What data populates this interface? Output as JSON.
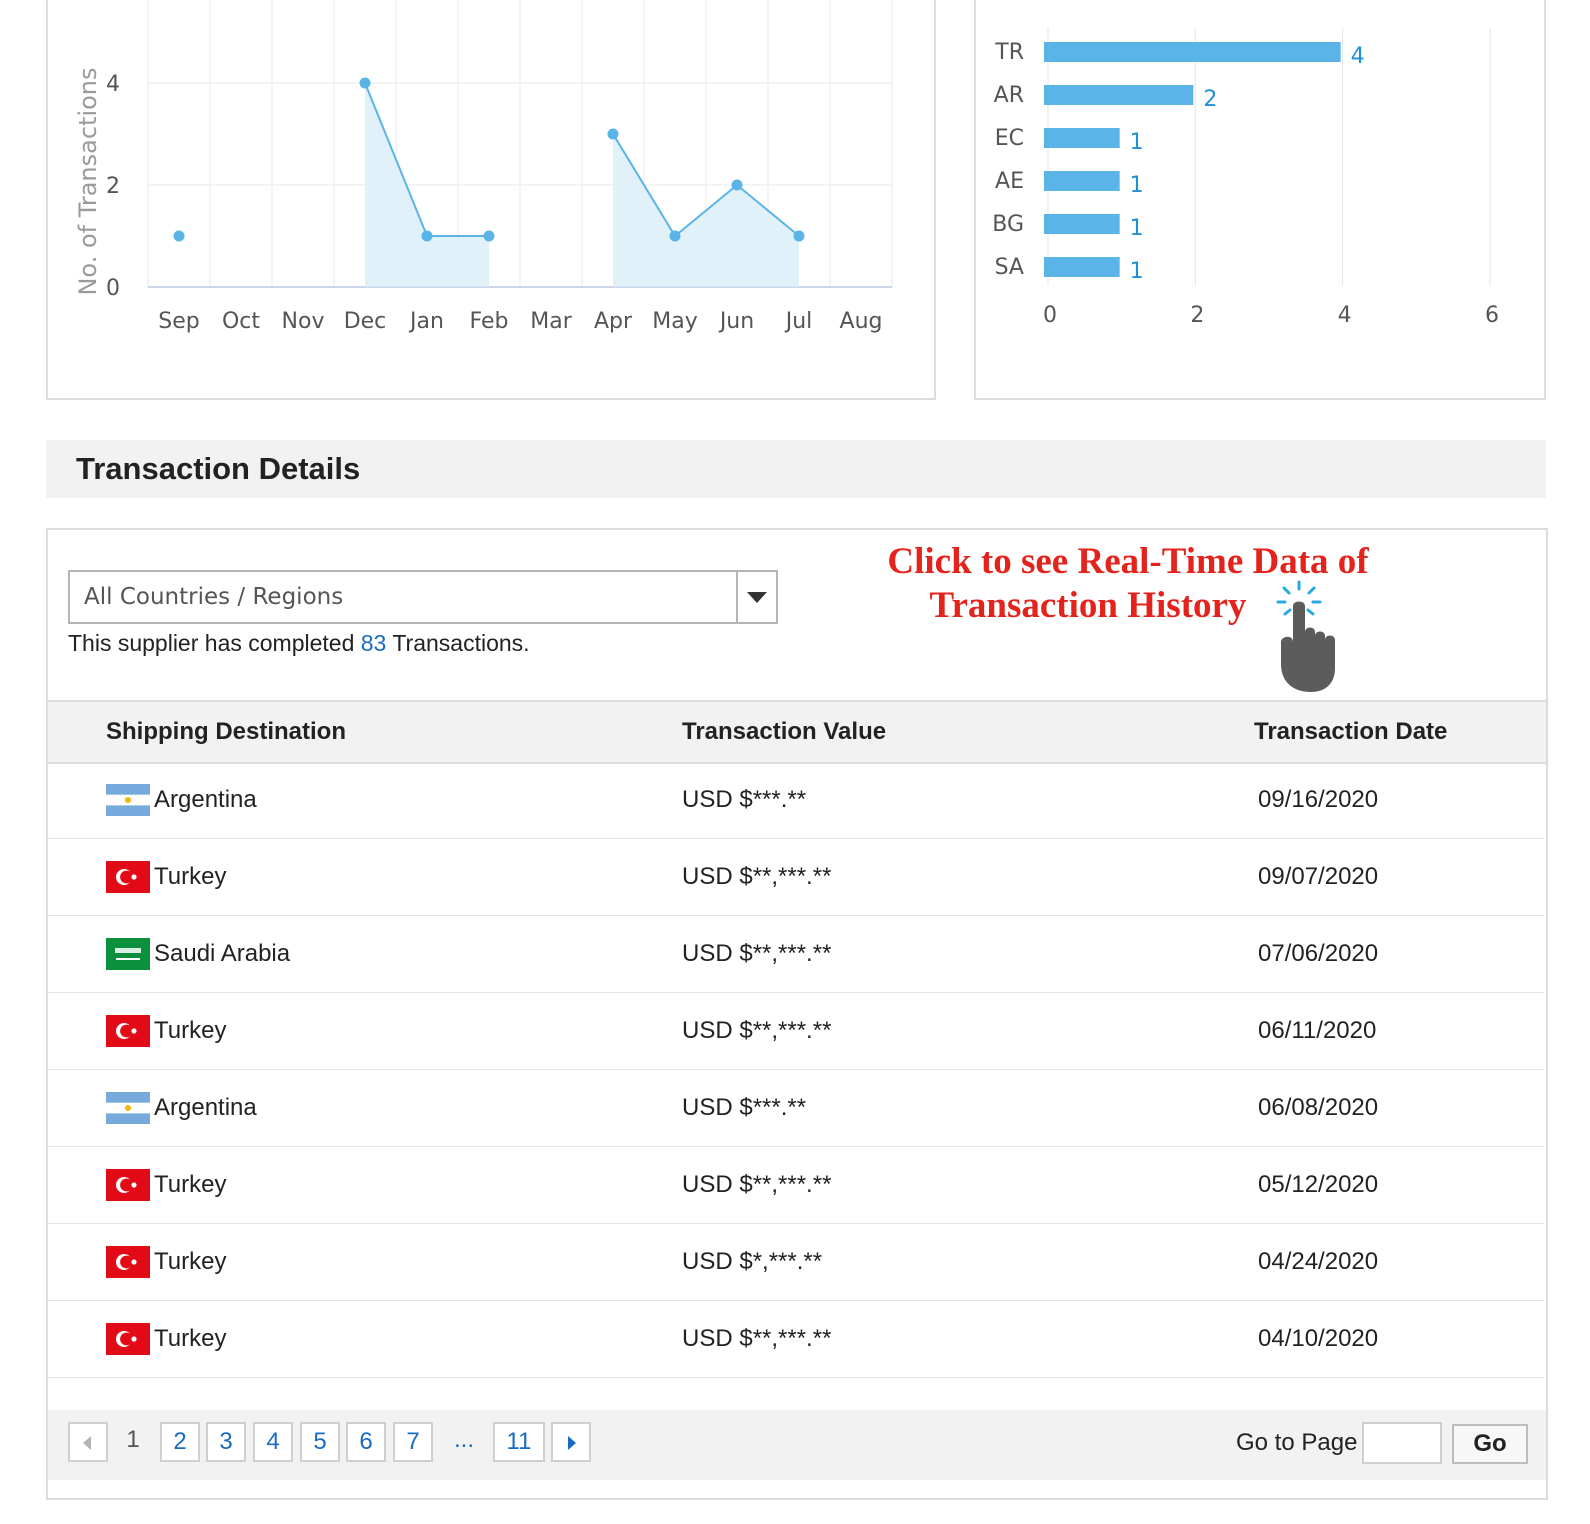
{
  "chart_data": [
    {
      "type": "line",
      "ylabel": "No. of Transactions",
      "x": [
        "Sep",
        "Oct",
        "Nov",
        "Dec",
        "Jan",
        "Feb",
        "Mar",
        "Apr",
        "May",
        "Jun",
        "Jul",
        "Aug"
      ],
      "y_ticks": [
        "0",
        "2",
        "4"
      ],
      "ylim": [
        0,
        4
      ],
      "series": [
        {
          "values": [
            1,
            null,
            null,
            4,
            1,
            1,
            null,
            3,
            1,
            2,
            1,
            null
          ]
        }
      ],
      "grid": true,
      "area_fill": true,
      "colors": {
        "line": "#5ab4e8",
        "fill": "#daeef9",
        "grid": "#e8e8e8"
      }
    },
    {
      "type": "bar",
      "orientation": "horizontal",
      "categories": [
        "TR",
        "AR",
        "EC",
        "AE",
        "BG",
        "SA"
      ],
      "values": [
        4,
        2,
        1,
        1,
        1,
        1
      ],
      "data_labels": [
        "4",
        "2",
        "1",
        "1",
        "1",
        "1"
      ],
      "x_ticks": [
        "0",
        "2",
        "4",
        "6"
      ],
      "xlim": [
        0,
        6
      ],
      "grid": true,
      "colors": {
        "bar": "#5ab4e8",
        "label": "#1f8fd6"
      }
    }
  ],
  "section": {
    "title": "Transaction Details"
  },
  "filter": {
    "selected": "All Countries / Regions"
  },
  "summary": {
    "prefix": "This supplier has completed ",
    "count": "83",
    "suffix": " Transactions."
  },
  "promo": {
    "line1": "Click to see Real-Time Data of",
    "line2": "Transaction History"
  },
  "table": {
    "headers": {
      "destination": "Shipping Destination",
      "value": "Transaction Value",
      "date": "Transaction Date"
    },
    "rows": [
      {
        "country": "Argentina",
        "flag": "argentina-flag-icon",
        "value": "USD $***.**",
        "date": "09/16/2020"
      },
      {
        "country": "Turkey",
        "flag": "turkey-flag-icon",
        "value": "USD $**,***.**",
        "date": "09/07/2020"
      },
      {
        "country": "Saudi Arabia",
        "flag": "saudi-arabia-flag-icon",
        "value": "USD $**,***.**",
        "date": "07/06/2020"
      },
      {
        "country": "Turkey",
        "flag": "turkey-flag-icon",
        "value": "USD $**,***.**",
        "date": "06/11/2020"
      },
      {
        "country": "Argentina",
        "flag": "argentina-flag-icon",
        "value": "USD $***.**",
        "date": "06/08/2020"
      },
      {
        "country": "Turkey",
        "flag": "turkey-flag-icon",
        "value": "USD $**,***.**",
        "date": "05/12/2020"
      },
      {
        "country": "Turkey",
        "flag": "turkey-flag-icon",
        "value": "USD $*,***.**",
        "date": "04/24/2020"
      },
      {
        "country": "Turkey",
        "flag": "turkey-flag-icon",
        "value": "USD $**,***.**",
        "date": "04/10/2020"
      }
    ]
  },
  "pagination": {
    "current": "1",
    "pages": [
      "2",
      "3",
      "4",
      "5",
      "6",
      "7"
    ],
    "ellipsis": "...",
    "last": "11",
    "goto_label": "Go to Page",
    "goto_value": "",
    "go_label": "Go"
  },
  "icons": {
    "prev": "chevron-left-icon",
    "next": "chevron-right-icon",
    "dropdown": "caret-down-icon",
    "pointer": "pointing-hand-icon"
  }
}
